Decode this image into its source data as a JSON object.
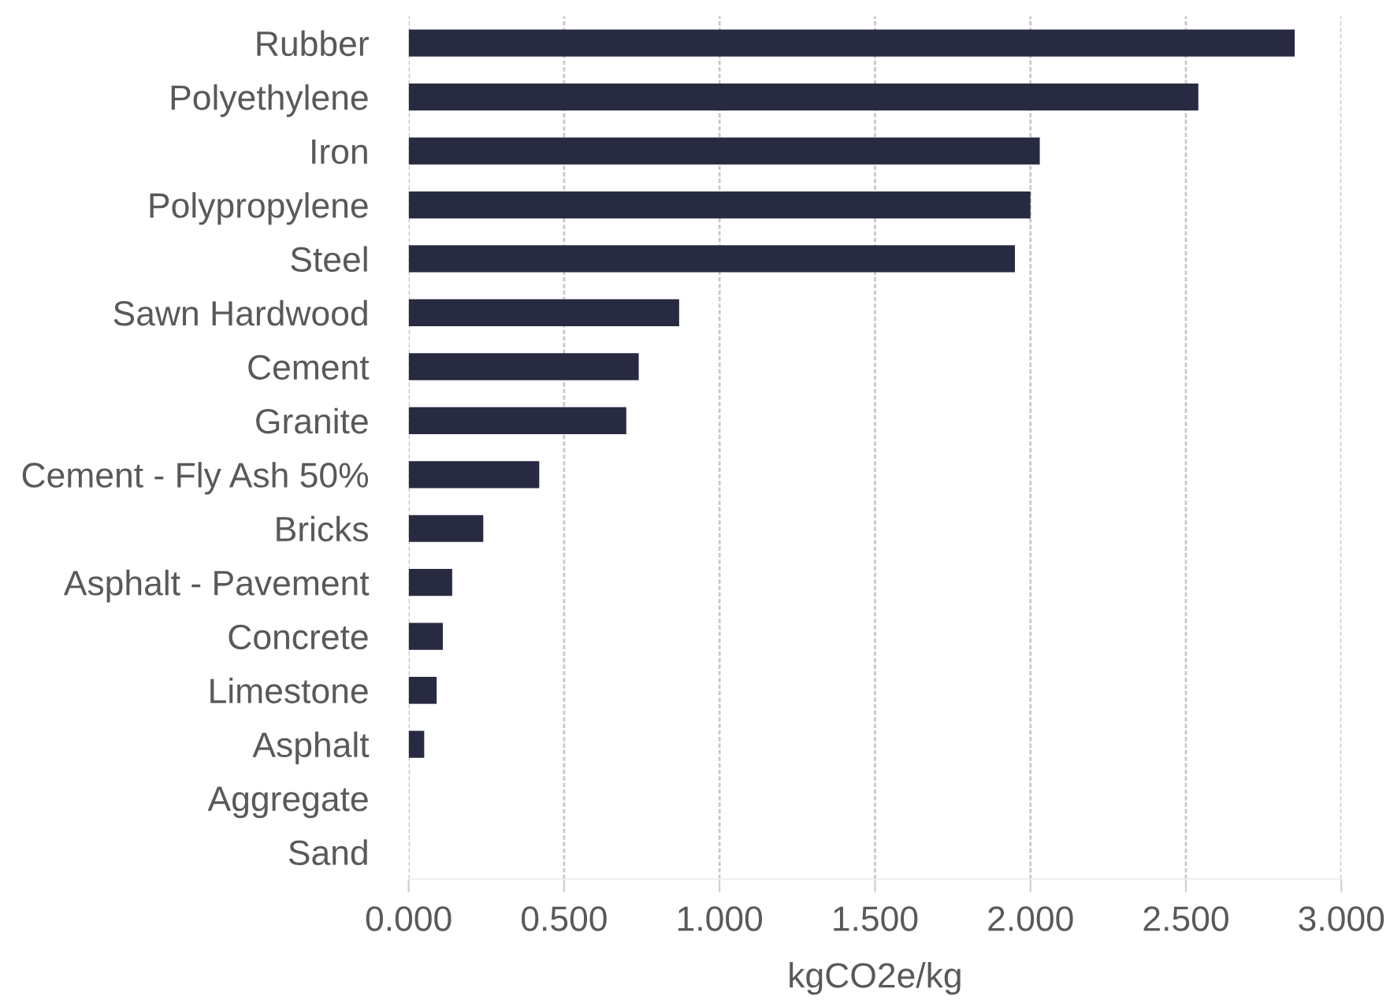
{
  "chart_data": {
    "type": "bar",
    "orientation": "horizontal",
    "categories": [
      "Rubber",
      "Polyethylene",
      "Iron",
      "Polypropylene",
      "Steel",
      "Sawn Hardwood",
      "Cement",
      "Granite",
      "Cement - Fly Ash 50%",
      "Bricks",
      "Asphalt - Pavement",
      "Concrete",
      "Limestone",
      "Asphalt",
      "Aggregate",
      "Sand"
    ],
    "values": [
      2.85,
      2.54,
      2.03,
      2.0,
      1.95,
      0.87,
      0.74,
      0.7,
      0.42,
      0.24,
      0.14,
      0.11,
      0.09,
      0.05,
      0,
      0
    ],
    "color": "#272a40",
    "xlabel": "kgCO2e/kg",
    "xlim": [
      0,
      3
    ],
    "xticks": [
      {
        "value": 0,
        "label": "0.000"
      },
      {
        "value": 0.5,
        "label": "0.500"
      },
      {
        "value": 1,
        "label": "1.000"
      },
      {
        "value": 1.5,
        "label": "1.500"
      },
      {
        "value": 2,
        "label": "2.000"
      },
      {
        "value": 2.5,
        "label": "2.500"
      },
      {
        "value": 3,
        "label": "3.000"
      }
    ],
    "grid": "x"
  }
}
